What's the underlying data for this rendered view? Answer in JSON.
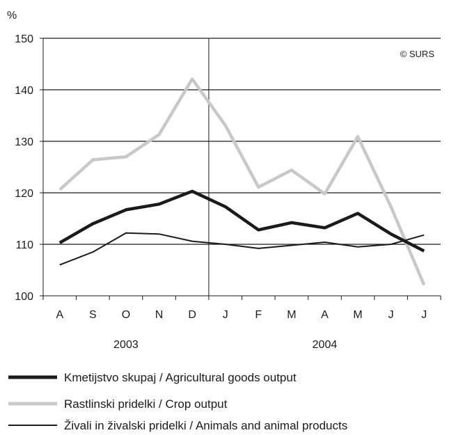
{
  "chart_data": {
    "type": "line",
    "y_unit": "%",
    "copyright": "© SURS",
    "ylim": [
      100,
      150
    ],
    "yticks": [
      100,
      110,
      120,
      130,
      140,
      150
    ],
    "grid": "horizontal",
    "categories": [
      "A",
      "S",
      "O",
      "N",
      "D",
      "J",
      "F",
      "M",
      "A",
      "M",
      "J",
      "J"
    ],
    "year_groups": [
      {
        "label": "2003",
        "from": 0,
        "to": 4
      },
      {
        "label": "2004",
        "from": 5,
        "to": 11
      }
    ],
    "year_divider_after": 4,
    "series": [
      {
        "name": "Kmetijstvo skupaj / Agricultural goods output",
        "color": "#1a1a1a",
        "width": "thick",
        "values": [
          110.3,
          114.0,
          116.7,
          117.8,
          120.3,
          117.3,
          112.8,
          114.2,
          113.2,
          116.0,
          112.0,
          108.7
        ]
      },
      {
        "name": "Rastlinski pridelki / Crop output",
        "color": "#c8c8c8",
        "width": "thick",
        "values": [
          120.6,
          126.4,
          127.0,
          131.3,
          142.1,
          133.1,
          121.1,
          124.4,
          119.8,
          130.9,
          117.3,
          102.1
        ]
      },
      {
        "name": "Živali in živalski pridelki / Animals and animal products",
        "color": "#1a1a1a",
        "width": "thin",
        "values": [
          106.0,
          108.5,
          112.2,
          112.0,
          110.6,
          110.0,
          109.2,
          109.8,
          110.4,
          109.5,
          110.0,
          111.8
        ]
      }
    ],
    "legend_position": "bottom"
  }
}
